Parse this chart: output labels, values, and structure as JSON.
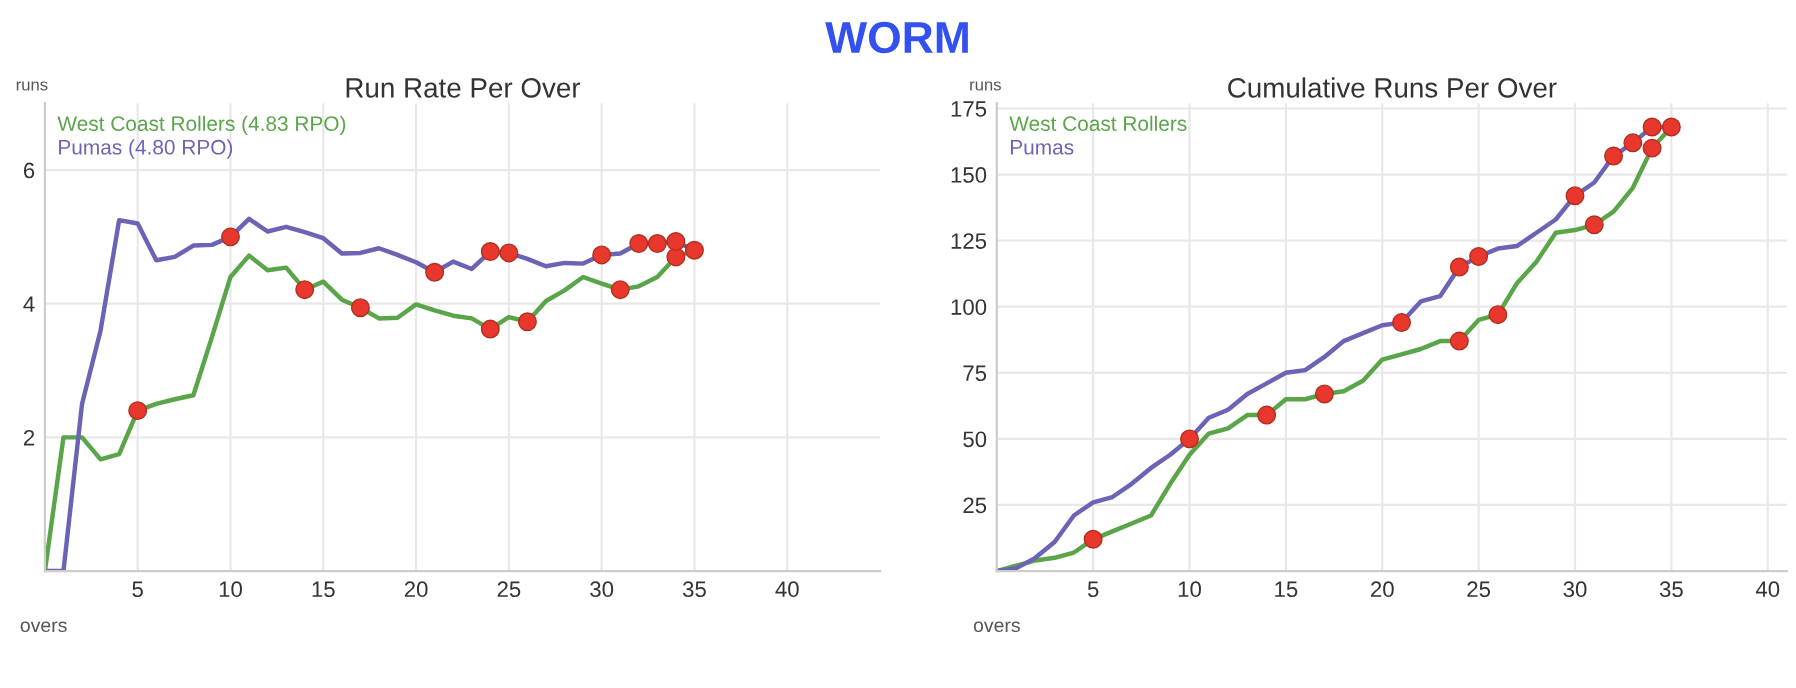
{
  "chart_data": [
    {
      "type": "line",
      "title": "Run Rate Per Over",
      "xlabel": "overs",
      "ylabel": "runs",
      "annotations": [
        "WORM"
      ],
      "xlim": [
        0,
        45
      ],
      "ylim": [
        0,
        7
      ],
      "xticks": [
        5,
        10,
        15,
        20,
        25,
        30,
        35,
        40
      ],
      "yticks": [
        2,
        4,
        6
      ],
      "grid": true,
      "legend": "top left",
      "series": [
        {
          "name": "West Coast Rollers (4.83 RPO)",
          "color": "#5aa54a",
          "x": [
            0,
            1,
            2,
            3,
            4,
            5,
            6,
            7,
            8,
            9,
            10,
            11,
            12,
            13,
            14,
            15,
            16,
            17,
            18,
            19,
            20,
            21,
            22,
            23,
            24,
            25,
            26,
            27,
            28,
            29,
            30,
            31,
            32,
            33,
            34,
            35
          ],
          "values": [
            0,
            2.0,
            2.0,
            1.67,
            1.75,
            2.4,
            2.5,
            2.57,
            2.63,
            3.5,
            4.4,
            4.72,
            4.5,
            4.54,
            4.21,
            4.33,
            4.06,
            3.94,
            3.78,
            3.79,
            3.99,
            3.9,
            3.82,
            3.78,
            3.62,
            3.8,
            3.73,
            4.04,
            4.2,
            4.4,
            4.3,
            4.21,
            4.26,
            4.4,
            4.7,
            4.8
          ]
        },
        {
          "name": "Pumas (4.80 RPO)",
          "color": "#6b63b5",
          "x": [
            0,
            1,
            2,
            3,
            4,
            5,
            6,
            7,
            8,
            9,
            10,
            11,
            12,
            13,
            14,
            15,
            16,
            17,
            18,
            19,
            20,
            21,
            22,
            23,
            24,
            25,
            26,
            27,
            28,
            29,
            30,
            31,
            32,
            33,
            34,
            35
          ],
          "values": [
            0,
            0,
            2.5,
            3.6,
            5.25,
            5.2,
            4.65,
            4.7,
            4.87,
            4.88,
            5.0,
            5.27,
            5.08,
            5.15,
            5.07,
            4.98,
            4.75,
            4.76,
            4.83,
            4.73,
            4.62,
            4.47,
            4.63,
            4.52,
            4.78,
            4.76,
            4.67,
            4.56,
            4.61,
            4.6,
            4.73,
            4.75,
            4.9,
            4.9,
            4.93,
            4.8
          ]
        },
        {
          "type": "scatter",
          "marker": "circle",
          "color": "#e8372c",
          "x": [
            5,
            14,
            17,
            24,
            26,
            31,
            34
          ],
          "values": [
            2.4,
            4.21,
            3.94,
            3.62,
            3.73,
            4.21,
            4.7
          ]
        },
        {
          "type": "scatter",
          "marker": "circle",
          "color": "#e8372c",
          "x": [
            10,
            21,
            24,
            25,
            30,
            32,
            33,
            34,
            35
          ],
          "values": [
            5.0,
            4.47,
            4.78,
            4.76,
            4.73,
            4.9,
            4.9,
            4.93,
            4.8
          ]
        }
      ]
    },
    {
      "type": "line",
      "title": "Cumulative Runs Per Over",
      "xlabel": "overs",
      "ylabel": "runs",
      "xlim": [
        0,
        41
      ],
      "ylim": [
        0,
        177
      ],
      "xticks": [
        5,
        10,
        15,
        20,
        25,
        30,
        35,
        40
      ],
      "yticks": [
        25,
        50,
        75,
        100,
        125,
        150,
        175
      ],
      "grid": true,
      "legend": "top left",
      "series": [
        {
          "name": "West Coast Rollers",
          "color": "#5aa54a",
          "x": [
            0,
            1,
            2,
            3,
            4,
            5,
            6,
            7,
            8,
            9,
            10,
            11,
            12,
            13,
            14,
            15,
            16,
            17,
            18,
            19,
            20,
            21,
            22,
            23,
            24,
            25,
            26,
            27,
            28,
            29,
            30,
            31,
            32,
            33,
            34,
            35
          ],
          "values": [
            0,
            2,
            4,
            5,
            7,
            12,
            15,
            18,
            21,
            33,
            44,
            52,
            54,
            59,
            59,
            65,
            65,
            67,
            68,
            72,
            80,
            82,
            84,
            87,
            87,
            95,
            97,
            109,
            117,
            128,
            129,
            131,
            136,
            145,
            160,
            168
          ]
        },
        {
          "name": "Pumas",
          "color": "#6b63b5",
          "x": [
            0,
            1,
            2,
            3,
            4,
            5,
            6,
            7,
            8,
            9,
            10,
            11,
            12,
            13,
            14,
            15,
            16,
            17,
            18,
            19,
            20,
            21,
            22,
            23,
            24,
            25,
            26,
            27,
            28,
            29,
            30,
            31,
            32,
            33,
            34,
            35
          ],
          "values": [
            0,
            1,
            5,
            11,
            21,
            26,
            28,
            33,
            39,
            44,
            50,
            58,
            61,
            67,
            71,
            75,
            76,
            81,
            87,
            90,
            93,
            94,
            102,
            104,
            115,
            119,
            122,
            123,
            128,
            133,
            142,
            147,
            157,
            162,
            168,
            168
          ]
        },
        {
          "type": "scatter",
          "marker": "circle",
          "color": "#e8372c",
          "x": [
            5,
            14,
            17,
            24,
            26,
            31,
            34
          ],
          "values": [
            12,
            59,
            67,
            87,
            97,
            131,
            160
          ]
        },
        {
          "type": "scatter",
          "marker": "circle",
          "color": "#e8372c",
          "x": [
            10,
            21,
            24,
            25,
            30,
            32,
            33,
            34,
            35
          ],
          "values": [
            50,
            94,
            115,
            119,
            142,
            157,
            162,
            168,
            168
          ]
        }
      ]
    }
  ]
}
